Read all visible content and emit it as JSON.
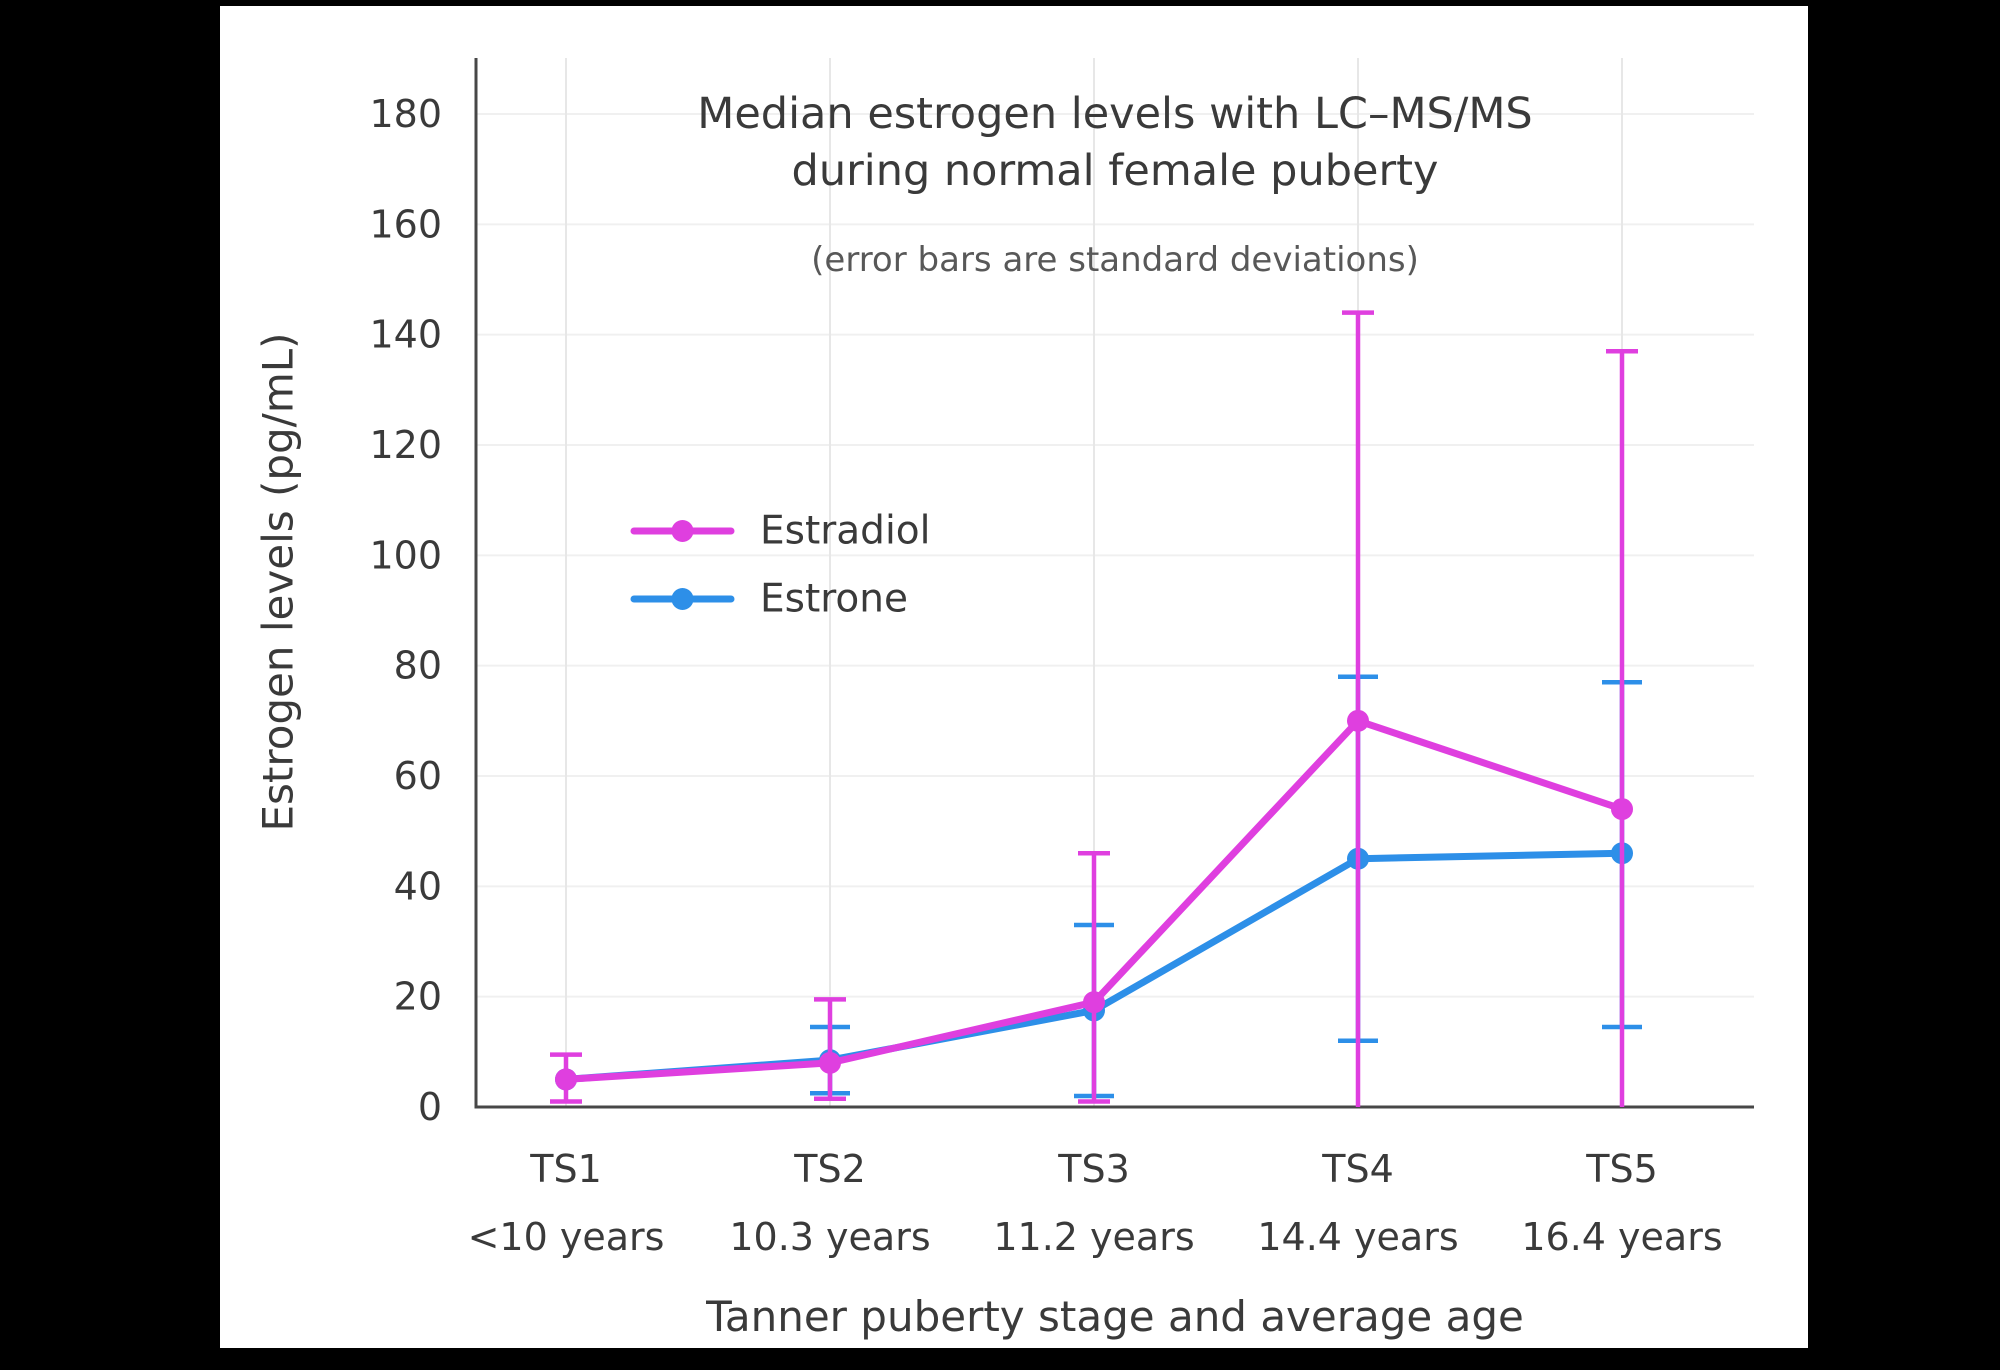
{
  "page": {
    "background": "#000000",
    "panel_background": "#ffffff",
    "text_color": "#3a3a3a",
    "subtitle_color": "#585858",
    "axis_color": "#474747",
    "gridline_color": "#e7e7e7"
  },
  "chart_data": {
    "type": "line",
    "title_line1": "Median estrogen levels with LC–MS/MS",
    "title_line2": "during normal female puberty",
    "subtitle": "(error bars are standard deviations)",
    "xlabel": "Tanner puberty stage and average age",
    "ylabel": "Estrogen levels (pg/mL)",
    "categories": [
      "TS1",
      "TS2",
      "TS3",
      "TS4",
      "TS5"
    ],
    "category_ages": [
      "<10 years",
      "10.3 years",
      "11.2 years",
      "14.4 years",
      "16.4 years"
    ],
    "ylim": [
      0,
      190
    ],
    "yticks": [
      0,
      20,
      40,
      60,
      80,
      100,
      120,
      140,
      160,
      180
    ],
    "grid": true,
    "legend_position": "inside-upper-left",
    "series": [
      {
        "name": "Estradiol",
        "color": "#DF3FDF",
        "values": [
          5,
          8,
          19,
          70,
          54
        ],
        "error_low": [
          1,
          1.5,
          1,
          0,
          0
        ],
        "error_high": [
          9.5,
          19.5,
          46,
          144,
          137
        ]
      },
      {
        "name": "Estrone",
        "color": "#2D8FE8",
        "values": [
          5,
          8.5,
          17.5,
          45,
          46
        ],
        "error_low": [
          null,
          2.5,
          2,
          12,
          14.5
        ],
        "error_high": [
          null,
          14.5,
          33,
          78,
          77
        ]
      }
    ]
  }
}
